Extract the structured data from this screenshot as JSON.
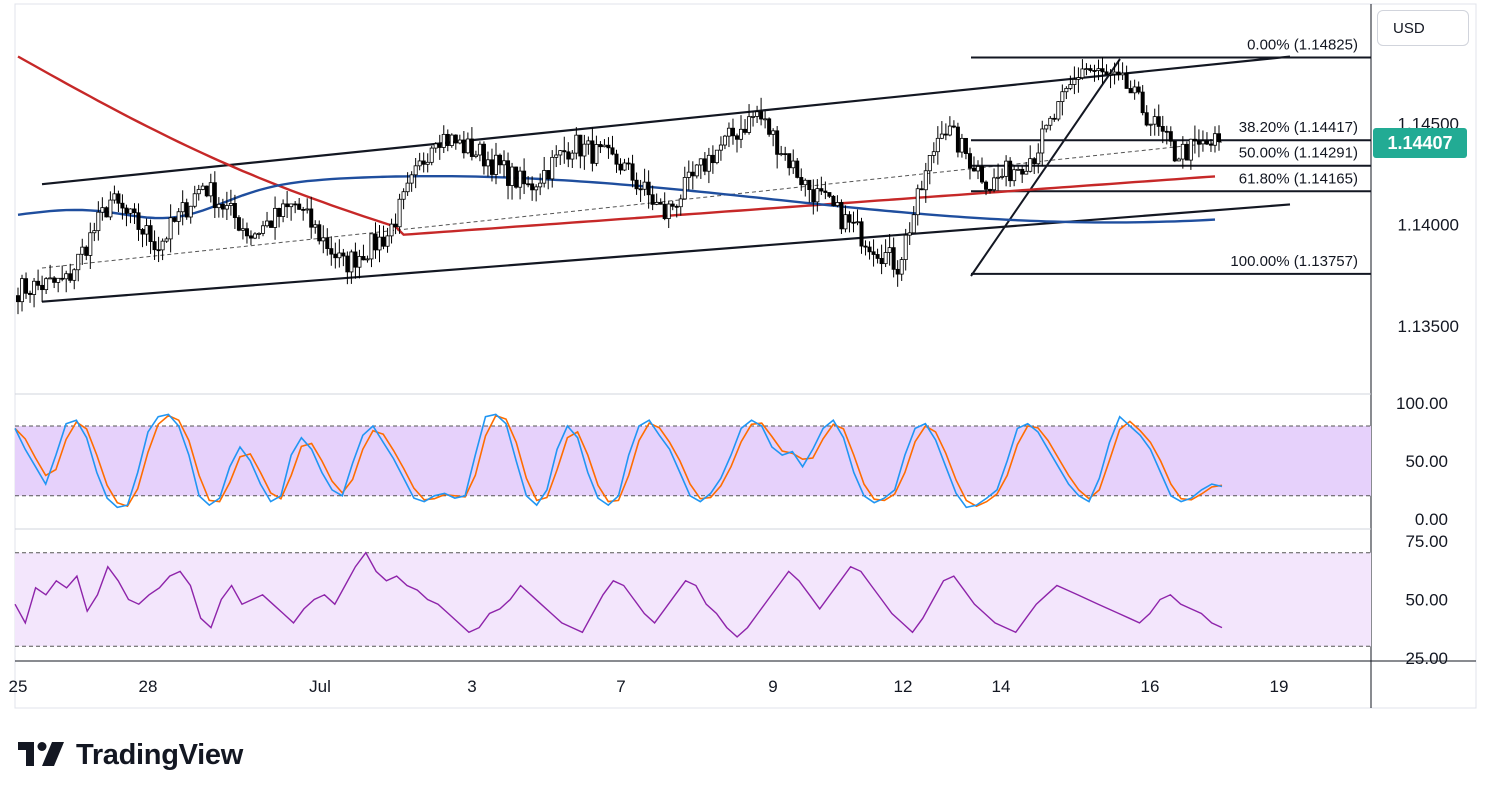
{
  "currency_label": "USD",
  "last_price": "1.14407",
  "brand": {
    "name": "TradingView",
    "logo_icon": "tradingview-logo-icon"
  },
  "colors": {
    "sma_red": "#c62828",
    "ema_blue": "#1f4e9e",
    "stoch_k": "#2196f3",
    "stoch_d": "#ff6d00",
    "rsi": "#8e24aa",
    "stoch_band": "#e6d1fb",
    "rsi_band": "#f3e6fc",
    "up": "#000000",
    "down": "#000000",
    "badge": "#22ab94"
  },
  "chart_data": [
    {
      "type": "candlestick",
      "title": "",
      "price_ticks": [
        "1.14500",
        "1.14000",
        "1.13500"
      ],
      "x_tick_labels": [
        "25",
        "28",
        "Jul",
        "3",
        "7",
        "9",
        "12",
        "14",
        "16",
        "19"
      ],
      "ylim": [
        1.1315,
        1.15
      ],
      "approx_close_path": [
        {
          "date": "Jun 25",
          "close": 1.1368
        },
        {
          "date": "Jun 26",
          "close": 1.1372
        },
        {
          "date": "Jun 27",
          "close": 1.1412
        },
        {
          "date": "Jun 28",
          "close": 1.139
        },
        {
          "date": "Jun 29",
          "close": 1.142
        },
        {
          "date": "Jun 30",
          "close": 1.1395
        },
        {
          "date": "Jul 1",
          "close": 1.141
        },
        {
          "date": "Jul 2",
          "close": 1.138
        },
        {
          "date": "Jul 2b",
          "close": 1.1395
        },
        {
          "date": "Jul 3",
          "close": 1.1445
        },
        {
          "date": "Jul 4",
          "close": 1.1435
        },
        {
          "date": "Jul 5",
          "close": 1.1418
        },
        {
          "date": "Jul 6",
          "close": 1.144
        },
        {
          "date": "Jul 7",
          "close": 1.143
        },
        {
          "date": "Jul 8",
          "close": 1.1405
        },
        {
          "date": "Jul 9",
          "close": 1.1435
        },
        {
          "date": "Jul 10",
          "close": 1.1455
        },
        {
          "date": "Jul 11",
          "close": 1.142
        },
        {
          "date": "Jul 12",
          "close": 1.14
        },
        {
          "date": "Jul 13",
          "close": 1.138
        },
        {
          "date": "Jul 14",
          "close": 1.145
        },
        {
          "date": "Jul 14b",
          "close": 1.142
        },
        {
          "date": "Jul 15",
          "close": 1.1435
        },
        {
          "date": "Jul 15b",
          "close": 1.1478
        },
        {
          "date": "Jul 16",
          "close": 1.1468
        },
        {
          "date": "Jul 16b",
          "close": 1.1435
        },
        {
          "date": "Jul 17",
          "close": 1.1441
        }
      ],
      "moving_averages": [
        {
          "color": "red",
          "approx": "declines from 1.1480 to 1.1395 by Jul 1, then flat rising to 1.1424"
        },
        {
          "color": "blue",
          "approx": "rises from 1.1405 to 1.1428"
        }
      ],
      "trend_channel": {
        "upper": [
          {
            "date": "Jun 26",
            "price": 1.142
          },
          {
            "date": "Jul 16",
            "price": 1.1483
          }
        ],
        "lower": [
          {
            "date": "Jun 26",
            "price": 1.1362
          },
          {
            "date": "Jul 18",
            "price": 1.141
          }
        ]
      },
      "fibonacci": {
        "levels": [
          {
            "label": "0.00% (1.14825)",
            "price": 1.14825
          },
          {
            "label": "38.20% (1.14417)",
            "price": 1.14417
          },
          {
            "label": "50.00% (1.14291)",
            "price": 1.14291
          },
          {
            "label": "61.80% (1.14165)",
            "price": 1.14165
          },
          {
            "label": "100.00% (1.13757)",
            "price": 1.13757
          }
        ]
      }
    },
    {
      "type": "line",
      "name": "",
      "tick_labels": [
        "100.00",
        "50.00",
        "0.00"
      ],
      "ylim": [
        0,
        100
      ],
      "band": [
        20,
        80
      ],
      "k_values": [
        78,
        60,
        45,
        30,
        55,
        82,
        85,
        70,
        40,
        18,
        10,
        12,
        40,
        75,
        88,
        90,
        80,
        55,
        20,
        12,
        18,
        45,
        62,
        50,
        30,
        15,
        20,
        55,
        70,
        60,
        40,
        25,
        20,
        48,
        72,
        80,
        66,
        52,
        35,
        18,
        15,
        20,
        22,
        18,
        20,
        55,
        88,
        90,
        82,
        50,
        20,
        12,
        25,
        60,
        80,
        70,
        40,
        18,
        12,
        20,
        55,
        80,
        85,
        72,
        60,
        40,
        20,
        15,
        22,
        35,
        55,
        78,
        85,
        80,
        62,
        55,
        58,
        45,
        60,
        78,
        85,
        70,
        40,
        20,
        14,
        18,
        25,
        55,
        78,
        82,
        68,
        45,
        22,
        10,
        12,
        18,
        25,
        50,
        78,
        82,
        75,
        60,
        45,
        30,
        20,
        15,
        35,
        66,
        88,
        80,
        72,
        60,
        40,
        20,
        15,
        18,
        25,
        30,
        28
      ]
    },
    {
      "type": "line",
      "name": "",
      "tick_labels": [
        "75.00",
        "50.00",
        "25.00"
      ],
      "ylim": [
        25,
        75
      ],
      "band": [
        30,
        70
      ],
      "values": [
        48,
        40,
        55,
        52,
        58,
        55,
        60,
        45,
        52,
        64,
        58,
        50,
        48,
        52,
        55,
        60,
        62,
        56,
        42,
        38,
        50,
        56,
        48,
        50,
        52,
        48,
        44,
        40,
        46,
        50,
        52,
        48,
        56,
        64,
        70,
        62,
        58,
        60,
        56,
        54,
        50,
        48,
        44,
        40,
        36,
        38,
        44,
        46,
        50,
        56,
        52,
        48,
        44,
        40,
        38,
        36,
        44,
        52,
        58,
        56,
        50,
        44,
        40,
        46,
        52,
        58,
        56,
        48,
        44,
        38,
        34,
        38,
        44,
        50,
        56,
        62,
        58,
        52,
        46,
        52,
        58,
        64,
        62,
        56,
        50,
        44,
        40,
        36,
        42,
        50,
        58,
        60,
        54,
        48,
        44,
        40,
        38,
        36,
        42,
        48,
        52,
        56,
        54,
        52,
        50,
        48,
        46,
        44,
        42,
        40,
        44,
        50,
        52,
        48,
        46,
        44,
        40,
        38
      ]
    }
  ]
}
